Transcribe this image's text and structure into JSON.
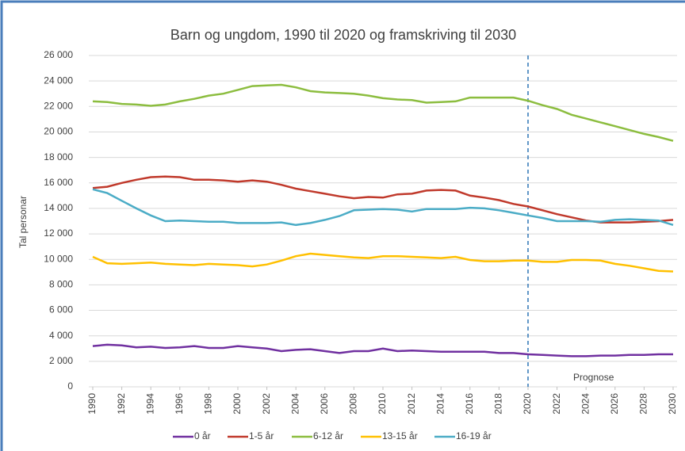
{
  "chart_data": {
    "type": "line",
    "title": "Barn og ungdom, 1990 til 2020 og framskriving til 2030",
    "y_label": "Tal personar",
    "x": [
      1990,
      1991,
      1992,
      1993,
      1994,
      1995,
      1996,
      1997,
      1998,
      1999,
      2000,
      2001,
      2002,
      2003,
      2004,
      2005,
      2006,
      2007,
      2008,
      2009,
      2010,
      2011,
      2012,
      2013,
      2014,
      2015,
      2016,
      2017,
      2018,
      2019,
      2020,
      2021,
      2022,
      2023,
      2024,
      2025,
      2026,
      2027,
      2028,
      2029,
      2030
    ],
    "xlim": [
      1990,
      2030
    ],
    "xticks": [
      1990,
      1992,
      1994,
      1996,
      1998,
      2000,
      2002,
      2004,
      2006,
      2008,
      2010,
      2012,
      2014,
      2016,
      2018,
      2020,
      2022,
      2024,
      2026,
      2028,
      2030
    ],
    "ylim": [
      0,
      26000
    ],
    "yticks": [
      0,
      {
        "value": 2000,
        "label": "2 000"
      },
      {
        "value": 4000,
        "label": "4 000"
      },
      {
        "value": 6000,
        "label": "6 000"
      },
      {
        "value": 8000,
        "label": "8 000"
      },
      {
        "value": 10000,
        "label": "10 000"
      },
      {
        "value": 12000,
        "label": "12 000"
      },
      {
        "value": 14000,
        "label": "14 000"
      },
      {
        "value": 16000,
        "label": "16 000"
      },
      {
        "value": 18000,
        "label": "18 000"
      },
      {
        "value": 20000,
        "label": "20 000"
      },
      {
        "value": 22000,
        "label": "22 000"
      },
      {
        "value": 24000,
        "label": "24 000"
      },
      {
        "value": 26000,
        "label": "26 000"
      }
    ],
    "grid": true,
    "legend": "bottom",
    "reference_line": {
      "x": 2020,
      "label": "Prognose"
    },
    "series": [
      {
        "name": "0 år",
        "color": "#7030a0",
        "values": [
          3200,
          3300,
          3250,
          3100,
          3150,
          3050,
          3100,
          3200,
          3050,
          3050,
          3200,
          3100,
          3000,
          2800,
          2900,
          2950,
          2800,
          2650,
          2800,
          2800,
          3000,
          2800,
          2850,
          2800,
          2750,
          2750,
          2750,
          2750,
          2650,
          2650,
          2550,
          2500,
          2450,
          2400,
          2400,
          2450,
          2450,
          2500,
          2500,
          2550,
          2550
        ]
      },
      {
        "name": "1-5 år",
        "color": "#c0392b",
        "values": [
          15600,
          15700,
          16000,
          16250,
          16450,
          16500,
          16450,
          16250,
          16250,
          16200,
          16100,
          16200,
          16100,
          15850,
          15550,
          15350,
          15150,
          14950,
          14800,
          14900,
          14850,
          15100,
          15150,
          15400,
          15450,
          15400,
          15000,
          14850,
          14650,
          14350,
          14150,
          13850,
          13550,
          13300,
          13050,
          12900,
          12900,
          12900,
          12950,
          13000,
          13100
        ]
      },
      {
        "name": "6-12 år",
        "color": "#8cbd3f",
        "values": [
          22400,
          22350,
          22200,
          22150,
          22050,
          22150,
          22400,
          22600,
          22850,
          23000,
          23300,
          23600,
          23650,
          23700,
          23500,
          23200,
          23100,
          23050,
          23000,
          22850,
          22650,
          22550,
          22500,
          22300,
          22350,
          22400,
          22700,
          22700,
          22700,
          22700,
          22450,
          22100,
          21800,
          21350,
          21050,
          20750,
          20450,
          20150,
          19850,
          19600,
          19300
        ]
      },
      {
        "name": "13-15 år",
        "color": "#ffc000",
        "values": [
          10200,
          9700,
          9650,
          9700,
          9750,
          9650,
          9600,
          9550,
          9650,
          9600,
          9550,
          9450,
          9600,
          9900,
          10250,
          10450,
          10350,
          10250,
          10150,
          10100,
          10250,
          10250,
          10200,
          10150,
          10100,
          10200,
          9950,
          9850,
          9850,
          9900,
          9900,
          9800,
          9800,
          9950,
          9950,
          9900,
          9650,
          9500,
          9300,
          9100,
          9050
        ]
      },
      {
        "name": "16-19 år",
        "color": "#4bacc6",
        "values": [
          15500,
          15200,
          14600,
          14000,
          13450,
          13000,
          13050,
          13000,
          12950,
          12950,
          12850,
          12850,
          12850,
          12900,
          12700,
          12850,
          13100,
          13400,
          13850,
          13900,
          13950,
          13900,
          13750,
          13950,
          13950,
          13950,
          14050,
          14000,
          13850,
          13650,
          13450,
          13250,
          13000,
          13000,
          13000,
          12950,
          13100,
          13150,
          13100,
          13050,
          12700
        ]
      }
    ]
  }
}
